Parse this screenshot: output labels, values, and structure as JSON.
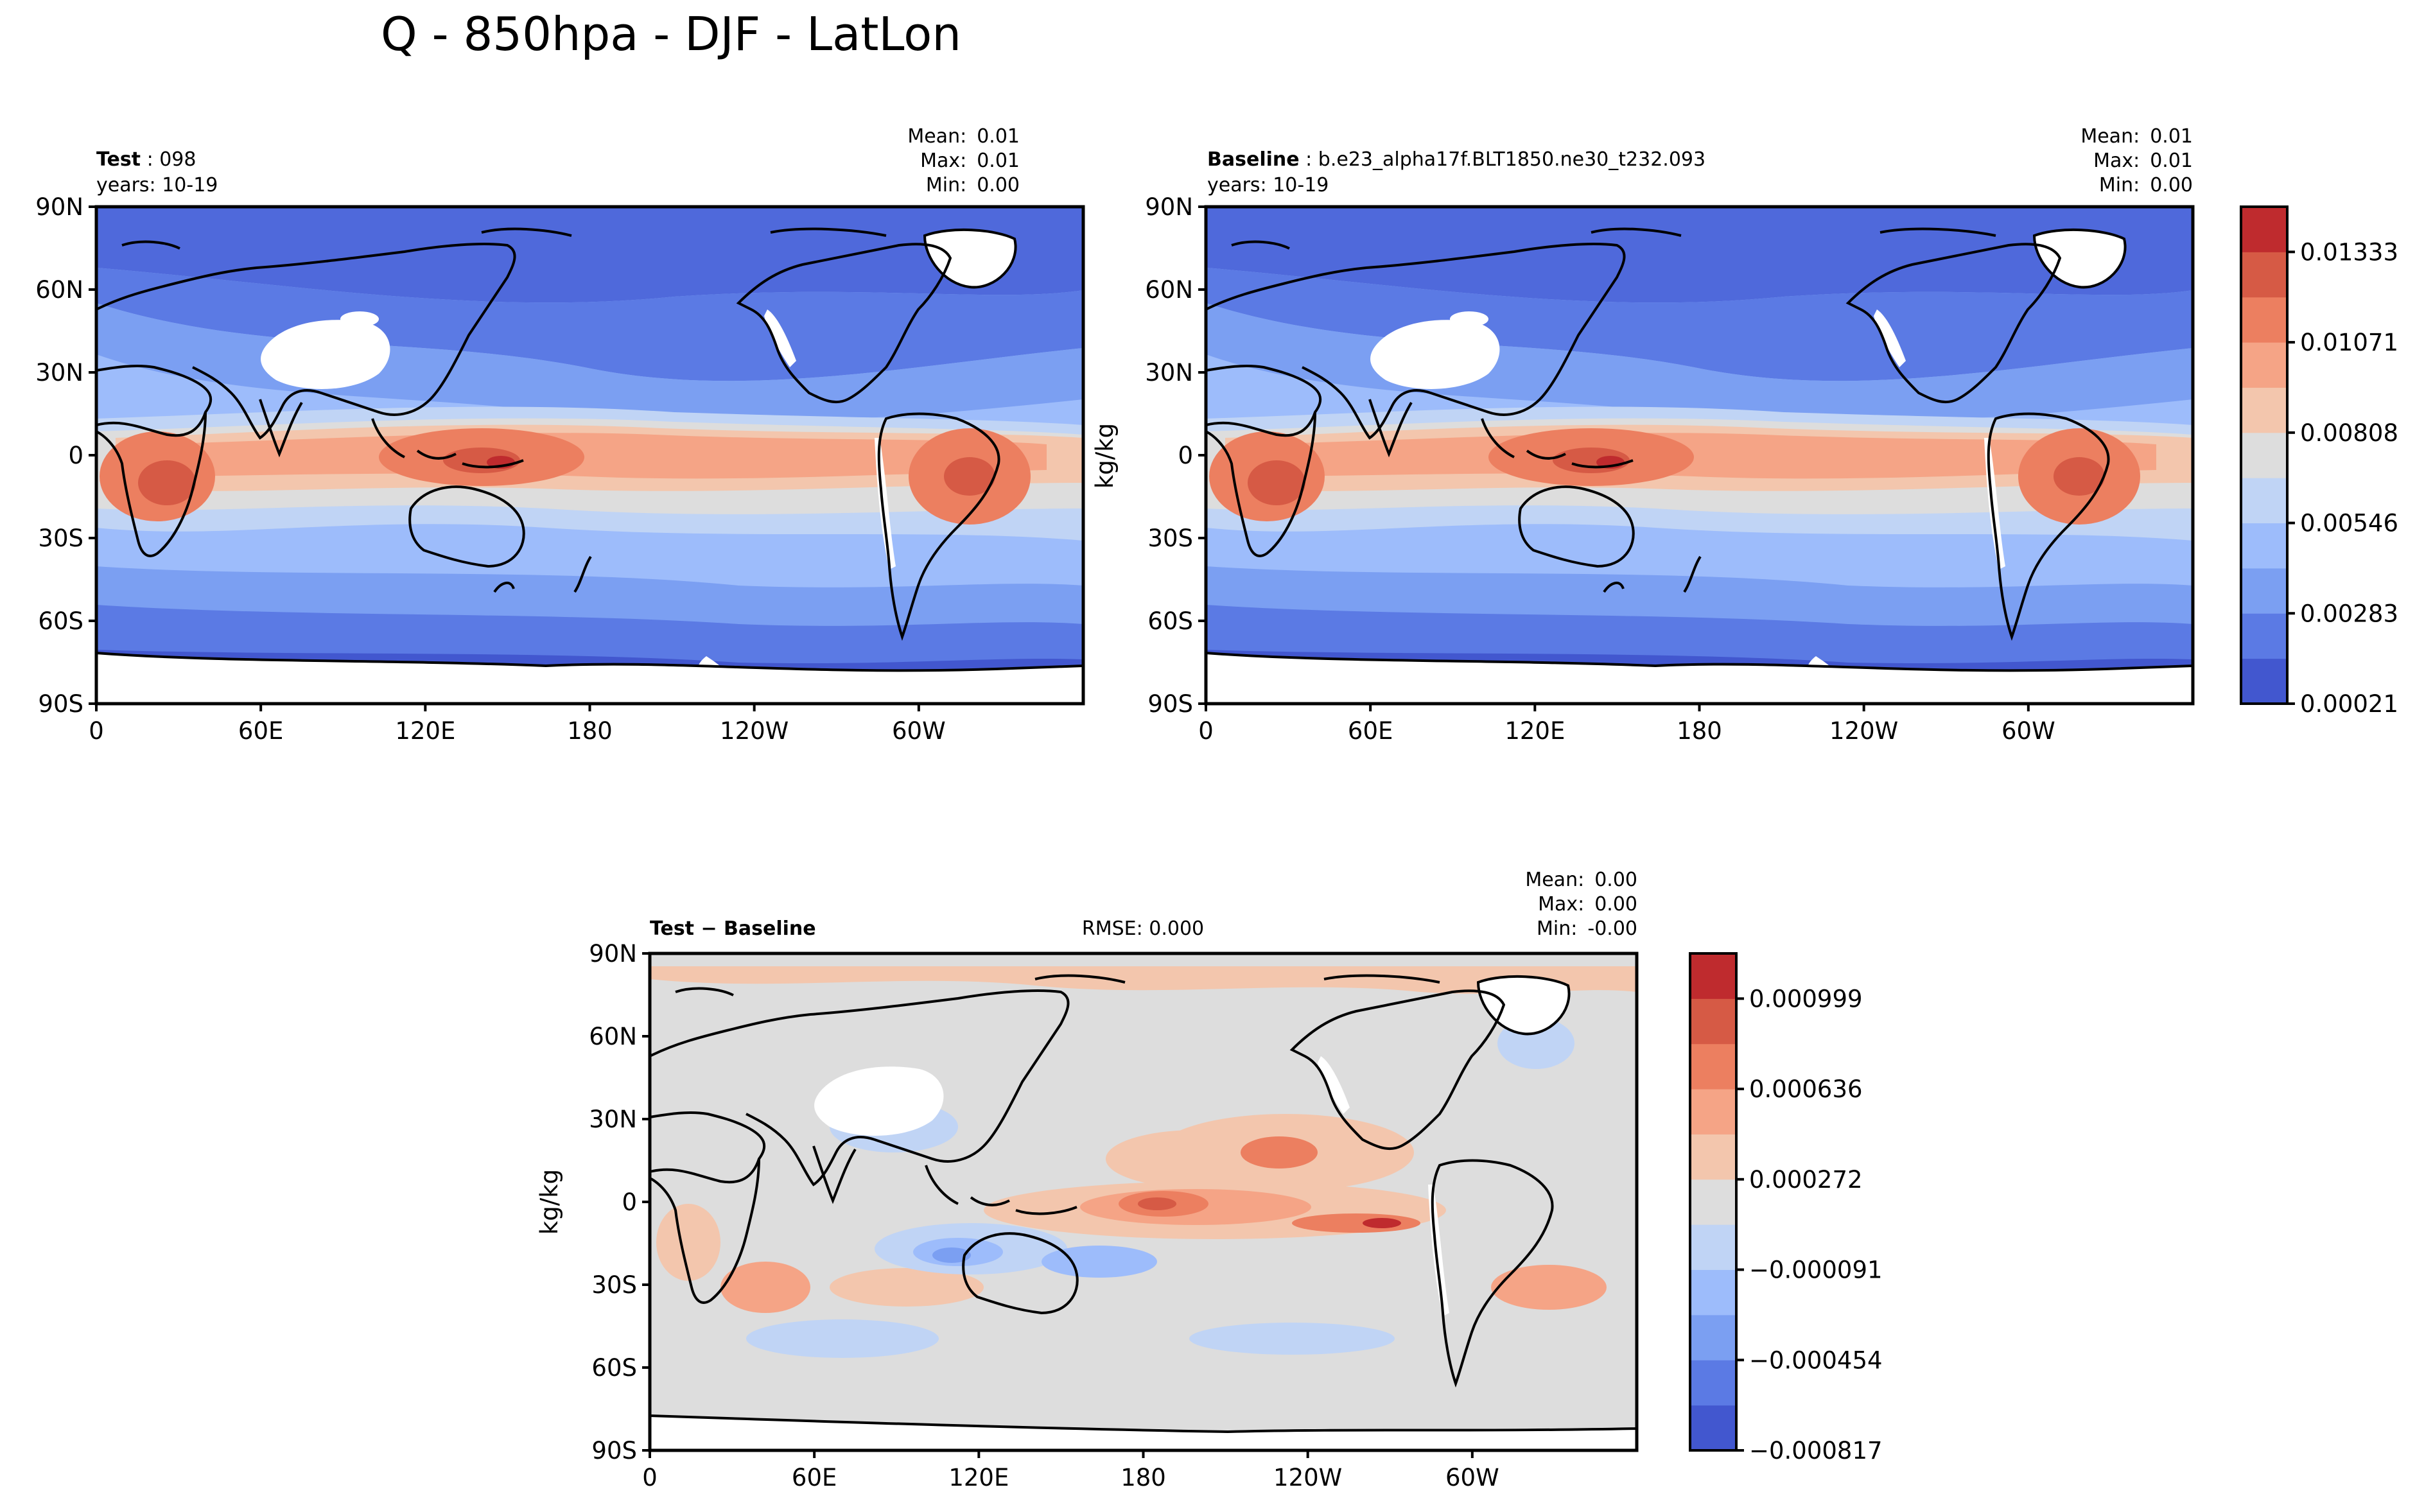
{
  "figure": {
    "title": "Q - 850hpa - DJF - LatLon"
  },
  "axes": {
    "lat_ticks": [
      "90N",
      "60N",
      "30N",
      "0",
      "30S",
      "60S",
      "90S"
    ],
    "lon_ticks": [
      "0",
      "60E",
      "120E",
      "180",
      "120W",
      "60W"
    ]
  },
  "panels": {
    "test": {
      "label": "Test",
      "case": "098",
      "years": "years: 10-19",
      "stats": {
        "mean": "0.01",
        "max": "0.01",
        "min": "0.00"
      }
    },
    "baseline": {
      "label": "Baseline",
      "case": "b.e23_alpha17f.BLT1850.ne30_t232.093",
      "years": "years: 10-19",
      "stats": {
        "mean": "0.01",
        "max": "0.01",
        "min": "0.00"
      }
    },
    "diff": {
      "label": "Test − Baseline",
      "rmse": "RMSE: 0.000",
      "stats": {
        "mean": "0.00",
        "max": "0.00",
        "min": "-0.00"
      }
    }
  },
  "stat_labels": {
    "mean": "Mean:",
    "max": "Max:",
    "min": "Min:"
  },
  "colorbars": {
    "main": {
      "unit": "kg/kg",
      "tick_labels": [
        "0.01333",
        "0.01071",
        "0.00808",
        "0.00546",
        "0.00283",
        "0.00021"
      ],
      "colors": [
        "#4257cf",
        "#5b7ae4",
        "#7b9ff2",
        "#9dbcfb",
        "#c0d4f5",
        "#dddddd",
        "#f3c6ad",
        "#f5a486",
        "#ec7f60",
        "#d65a45",
        "#bf2b2e"
      ]
    },
    "diff": {
      "unit": "kg/kg",
      "tick_labels": [
        "0.000999",
        "0.000636",
        "0.000272",
        "−0.000091",
        "−0.000454",
        "−0.000817"
      ],
      "colors": [
        "#4257cf",
        "#5b7ae4",
        "#7b9ff2",
        "#9dbcfb",
        "#c0d4f5",
        "#dddddd",
        "#f3c6ad",
        "#f5a486",
        "#ec7f60",
        "#d65a45",
        "#bf2b2e"
      ]
    }
  },
  "colors": {
    "land_missing": "#ffffff",
    "frame": "#000000"
  }
}
